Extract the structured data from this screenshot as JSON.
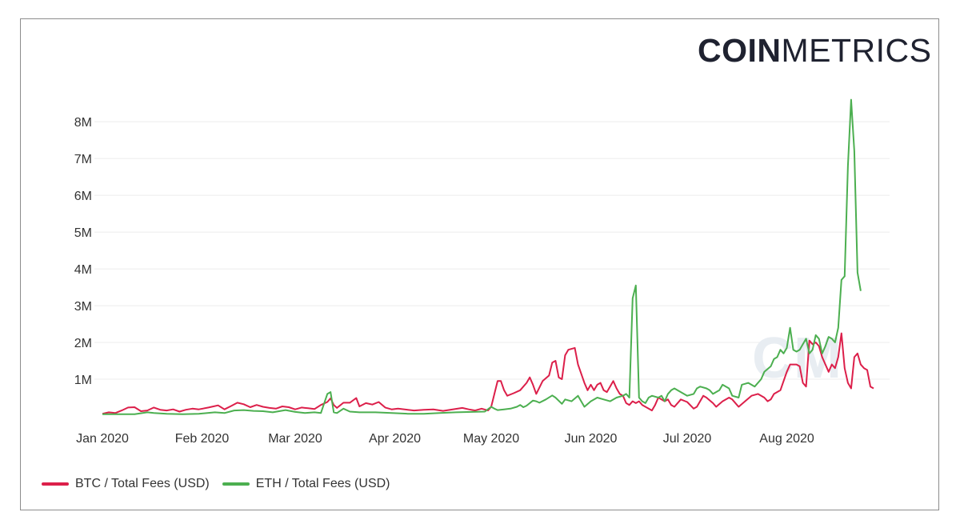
{
  "logo": {
    "bold": "COIN",
    "light": "METRICS"
  },
  "chart_data": {
    "type": "line",
    "title": "",
    "xlabel": "",
    "ylabel": "",
    "ylim": [
      0,
      8700000
    ],
    "yticks": [
      {
        "value": 1000000,
        "label": "1M"
      },
      {
        "value": 2000000,
        "label": "2M"
      },
      {
        "value": 3000000,
        "label": "3M"
      },
      {
        "value": 4000000,
        "label": "4M"
      },
      {
        "value": 5000000,
        "label": "5M"
      },
      {
        "value": 6000000,
        "label": "6M"
      },
      {
        "value": 7000000,
        "label": "7M"
      },
      {
        "value": 8000000,
        "label": "8M"
      }
    ],
    "xticks": [
      {
        "day": 0,
        "label": "Jan 2020"
      },
      {
        "day": 31,
        "label": "Feb 2020"
      },
      {
        "day": 60,
        "label": "Mar 2020"
      },
      {
        "day": 91,
        "label": "Apr 2020"
      },
      {
        "day": 121,
        "label": "May 2020"
      },
      {
        "day": 152,
        "label": "Jun 2020"
      },
      {
        "day": 182,
        "label": "Jul 2020"
      },
      {
        "day": 213,
        "label": "Aug 2020"
      }
    ],
    "x_unit": "days since 2020-01-01",
    "series": [
      {
        "name": "BTC / Total Fees (USD)",
        "color": "#dc1f4a",
        "points": [
          [
            0,
            60000
          ],
          [
            2,
            100000
          ],
          [
            4,
            80000
          ],
          [
            6,
            150000
          ],
          [
            8,
            230000
          ],
          [
            10,
            240000
          ],
          [
            12,
            130000
          ],
          [
            14,
            150000
          ],
          [
            16,
            230000
          ],
          [
            18,
            170000
          ],
          [
            20,
            150000
          ],
          [
            22,
            180000
          ],
          [
            24,
            120000
          ],
          [
            26,
            170000
          ],
          [
            28,
            200000
          ],
          [
            30,
            180000
          ],
          [
            33,
            230000
          ],
          [
            36,
            290000
          ],
          [
            38,
            180000
          ],
          [
            40,
            270000
          ],
          [
            42,
            360000
          ],
          [
            44,
            320000
          ],
          [
            46,
            240000
          ],
          [
            48,
            300000
          ],
          [
            50,
            250000
          ],
          [
            52,
            220000
          ],
          [
            54,
            200000
          ],
          [
            56,
            260000
          ],
          [
            58,
            240000
          ],
          [
            60,
            180000
          ],
          [
            62,
            230000
          ],
          [
            64,
            210000
          ],
          [
            66,
            190000
          ],
          [
            68,
            300000
          ],
          [
            70,
            380000
          ],
          [
            71,
            480000
          ],
          [
            72,
            300000
          ],
          [
            73,
            220000
          ],
          [
            75,
            360000
          ],
          [
            77,
            360000
          ],
          [
            79,
            490000
          ],
          [
            80,
            260000
          ],
          [
            82,
            350000
          ],
          [
            84,
            310000
          ],
          [
            86,
            380000
          ],
          [
            88,
            230000
          ],
          [
            90,
            180000
          ],
          [
            92,
            200000
          ],
          [
            95,
            170000
          ],
          [
            97,
            150000
          ],
          [
            100,
            170000
          ],
          [
            103,
            180000
          ],
          [
            106,
            140000
          ],
          [
            109,
            180000
          ],
          [
            112,
            220000
          ],
          [
            114,
            180000
          ],
          [
            116,
            150000
          ],
          [
            118,
            200000
          ],
          [
            120,
            150000
          ],
          [
            121,
            250000
          ],
          [
            123,
            950000
          ],
          [
            124,
            950000
          ],
          [
            125,
            700000
          ],
          [
            126,
            550000
          ],
          [
            128,
            620000
          ],
          [
            130,
            700000
          ],
          [
            132,
            900000
          ],
          [
            133,
            1050000
          ],
          [
            134,
            850000
          ],
          [
            135,
            600000
          ],
          [
            137,
            950000
          ],
          [
            139,
            1100000
          ],
          [
            140,
            1450000
          ],
          [
            141,
            1500000
          ],
          [
            142,
            1050000
          ],
          [
            143,
            1000000
          ],
          [
            144,
            1650000
          ],
          [
            145,
            1800000
          ],
          [
            147,
            1850000
          ],
          [
            148,
            1400000
          ],
          [
            150,
            900000
          ],
          [
            151,
            700000
          ],
          [
            152,
            850000
          ],
          [
            153,
            700000
          ],
          [
            154,
            850000
          ],
          [
            155,
            900000
          ],
          [
            156,
            700000
          ],
          [
            157,
            650000
          ],
          [
            158,
            800000
          ],
          [
            159,
            950000
          ],
          [
            160,
            750000
          ],
          [
            161,
            600000
          ],
          [
            162,
            550000
          ],
          [
            163,
            350000
          ],
          [
            164,
            300000
          ],
          [
            165,
            400000
          ],
          [
            166,
            350000
          ],
          [
            167,
            400000
          ],
          [
            168,
            300000
          ],
          [
            170,
            200000
          ],
          [
            171,
            150000
          ],
          [
            172,
            300000
          ],
          [
            173,
            500000
          ],
          [
            175,
            400000
          ],
          [
            176,
            450000
          ],
          [
            177,
            300000
          ],
          [
            178,
            250000
          ],
          [
            180,
            450000
          ],
          [
            182,
            380000
          ],
          [
            184,
            200000
          ],
          [
            185,
            250000
          ],
          [
            187,
            550000
          ],
          [
            188,
            500000
          ],
          [
            190,
            350000
          ],
          [
            191,
            250000
          ],
          [
            193,
            400000
          ],
          [
            195,
            500000
          ],
          [
            196,
            450000
          ],
          [
            198,
            250000
          ],
          [
            200,
            400000
          ],
          [
            202,
            550000
          ],
          [
            204,
            600000
          ],
          [
            206,
            500000
          ],
          [
            207,
            400000
          ],
          [
            208,
            450000
          ],
          [
            209,
            600000
          ],
          [
            211,
            700000
          ],
          [
            213,
            1200000
          ],
          [
            214,
            1400000
          ],
          [
            216,
            1400000
          ],
          [
            217,
            1350000
          ],
          [
            218,
            900000
          ],
          [
            219,
            800000
          ],
          [
            220,
            2050000
          ],
          [
            221,
            1950000
          ],
          [
            222,
            2000000
          ],
          [
            223,
            1900000
          ],
          [
            224,
            1600000
          ],
          [
            226,
            1200000
          ],
          [
            227,
            1400000
          ],
          [
            228,
            1300000
          ],
          [
            229,
            1600000
          ],
          [
            230,
            2250000
          ],
          [
            231,
            1300000
          ],
          [
            232,
            900000
          ],
          [
            233,
            750000
          ],
          [
            234,
            1600000
          ],
          [
            235,
            1700000
          ],
          [
            236,
            1400000
          ],
          [
            237,
            1300000
          ],
          [
            238,
            1250000
          ],
          [
            239,
            800000
          ],
          [
            240,
            750000
          ]
        ]
      },
      {
        "name": "ETH / Total Fees (USD)",
        "color": "#4caf50",
        "points": [
          [
            0,
            50000
          ],
          [
            5,
            50000
          ],
          [
            10,
            50000
          ],
          [
            14,
            100000
          ],
          [
            16,
            80000
          ],
          [
            20,
            60000
          ],
          [
            25,
            50000
          ],
          [
            30,
            60000
          ],
          [
            35,
            100000
          ],
          [
            38,
            80000
          ],
          [
            41,
            150000
          ],
          [
            44,
            160000
          ],
          [
            47,
            140000
          ],
          [
            50,
            130000
          ],
          [
            53,
            100000
          ],
          [
            57,
            160000
          ],
          [
            60,
            110000
          ],
          [
            63,
            80000
          ],
          [
            66,
            100000
          ],
          [
            68,
            80000
          ],
          [
            70,
            600000
          ],
          [
            71,
            650000
          ],
          [
            72,
            100000
          ],
          [
            73,
            80000
          ],
          [
            75,
            200000
          ],
          [
            77,
            120000
          ],
          [
            80,
            100000
          ],
          [
            85,
            100000
          ],
          [
            90,
            80000
          ],
          [
            95,
            60000
          ],
          [
            100,
            60000
          ],
          [
            105,
            80000
          ],
          [
            110,
            100000
          ],
          [
            115,
            110000
          ],
          [
            119,
            120000
          ],
          [
            121,
            250000
          ],
          [
            122,
            200000
          ],
          [
            123,
            160000
          ],
          [
            125,
            180000
          ],
          [
            127,
            200000
          ],
          [
            129,
            250000
          ],
          [
            130,
            300000
          ],
          [
            131,
            240000
          ],
          [
            132,
            280000
          ],
          [
            134,
            420000
          ],
          [
            135,
            400000
          ],
          [
            136,
            360000
          ],
          [
            138,
            450000
          ],
          [
            140,
            560000
          ],
          [
            141,
            500000
          ],
          [
            143,
            330000
          ],
          [
            144,
            450000
          ],
          [
            146,
            400000
          ],
          [
            148,
            550000
          ],
          [
            150,
            250000
          ],
          [
            152,
            400000
          ],
          [
            154,
            500000
          ],
          [
            156,
            450000
          ],
          [
            158,
            400000
          ],
          [
            160,
            500000
          ],
          [
            162,
            550000
          ],
          [
            163,
            600000
          ],
          [
            164,
            500000
          ],
          [
            165,
            3200000
          ],
          [
            166,
            3550000
          ],
          [
            167,
            500000
          ],
          [
            168,
            400000
          ],
          [
            169,
            350000
          ],
          [
            170,
            500000
          ],
          [
            171,
            550000
          ],
          [
            173,
            500000
          ],
          [
            174,
            550000
          ],
          [
            175,
            400000
          ],
          [
            176,
            600000
          ],
          [
            177,
            700000
          ],
          [
            178,
            750000
          ],
          [
            180,
            650000
          ],
          [
            182,
            550000
          ],
          [
            184,
            600000
          ],
          [
            185,
            750000
          ],
          [
            186,
            800000
          ],
          [
            188,
            750000
          ],
          [
            189,
            700000
          ],
          [
            190,
            600000
          ],
          [
            192,
            700000
          ],
          [
            193,
            850000
          ],
          [
            195,
            750000
          ],
          [
            196,
            550000
          ],
          [
            198,
            500000
          ],
          [
            199,
            850000
          ],
          [
            201,
            900000
          ],
          [
            203,
            800000
          ],
          [
            205,
            1000000
          ],
          [
            206,
            1200000
          ],
          [
            208,
            1350000
          ],
          [
            209,
            1550000
          ],
          [
            210,
            1600000
          ],
          [
            211,
            1800000
          ],
          [
            212,
            1700000
          ],
          [
            213,
            1850000
          ],
          [
            214,
            2400000
          ],
          [
            215,
            1800000
          ],
          [
            216,
            1750000
          ],
          [
            217,
            1800000
          ],
          [
            218,
            1950000
          ],
          [
            219,
            2100000
          ],
          [
            220,
            1700000
          ],
          [
            221,
            1800000
          ],
          [
            222,
            2200000
          ],
          [
            223,
            2100000
          ],
          [
            224,
            1700000
          ],
          [
            225,
            1900000
          ],
          [
            226,
            2150000
          ],
          [
            227,
            2100000
          ],
          [
            228,
            2000000
          ],
          [
            229,
            2400000
          ],
          [
            230,
            3700000
          ],
          [
            231,
            3800000
          ],
          [
            232,
            6800000
          ],
          [
            233,
            8600000
          ],
          [
            234,
            7200000
          ],
          [
            235,
            3900000
          ],
          [
            236,
            3400000
          ]
        ]
      }
    ]
  }
}
